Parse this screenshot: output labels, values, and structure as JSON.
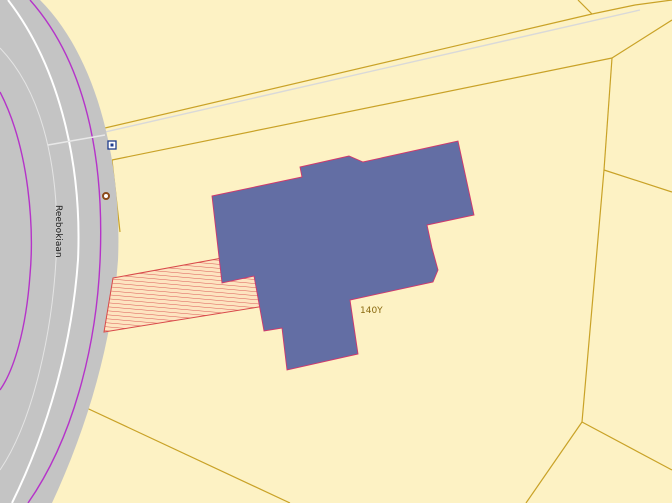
{
  "map": {
    "street_name": "Reebokiaan",
    "house_number": "140Y",
    "marker_icons": [
      "square-point-marker",
      "circle-point-marker"
    ],
    "colors": {
      "parcel_fill": "#fdf2c4",
      "parcel_line": "#c9a227",
      "road_fill": "#c4c4c4",
      "road_edge": "#ffffff",
      "road_boundary": "#b533c9",
      "building_fill": "#636ea4",
      "building_outline": "#d0386c",
      "driveway_hatch": "#d84a4a",
      "driveway_fill": "#fde4c0"
    }
  }
}
